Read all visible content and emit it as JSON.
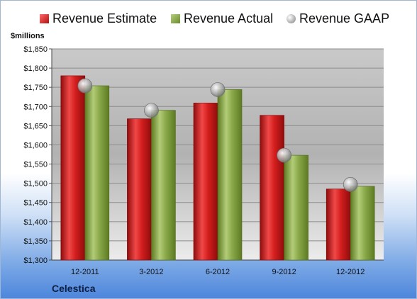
{
  "unit_label": "$millions",
  "company": "Celestica",
  "colors": {
    "estimate": "#cc1f1f",
    "actual": "#86a845",
    "gaap": "#b4b4b4"
  },
  "chart_data": {
    "type": "bar",
    "categories": [
      "12-2011",
      "3-2012",
      "6-2012",
      "9-2012",
      "12-2012"
    ],
    "series": [
      {
        "name": "Revenue Estimate",
        "values": [
          1780,
          1668,
          1709,
          1677,
          1485
        ]
      },
      {
        "name": "Revenue Actual",
        "values": [
          1754,
          1690,
          1744,
          1573,
          1492
        ]
      },
      {
        "name": "Revenue GAAP",
        "values": [
          1754,
          1690,
          1744,
          1573,
          1497
        ]
      }
    ],
    "ylim": [
      1300,
      1850
    ],
    "yticks": [
      "$1,300",
      "$1,350",
      "$1,400",
      "$1,450",
      "$1,500",
      "$1,550",
      "$1,600",
      "$1,650",
      "$1,700",
      "$1,750",
      "$1,800",
      "$1,850"
    ],
    "grid": true,
    "legend": "top"
  }
}
